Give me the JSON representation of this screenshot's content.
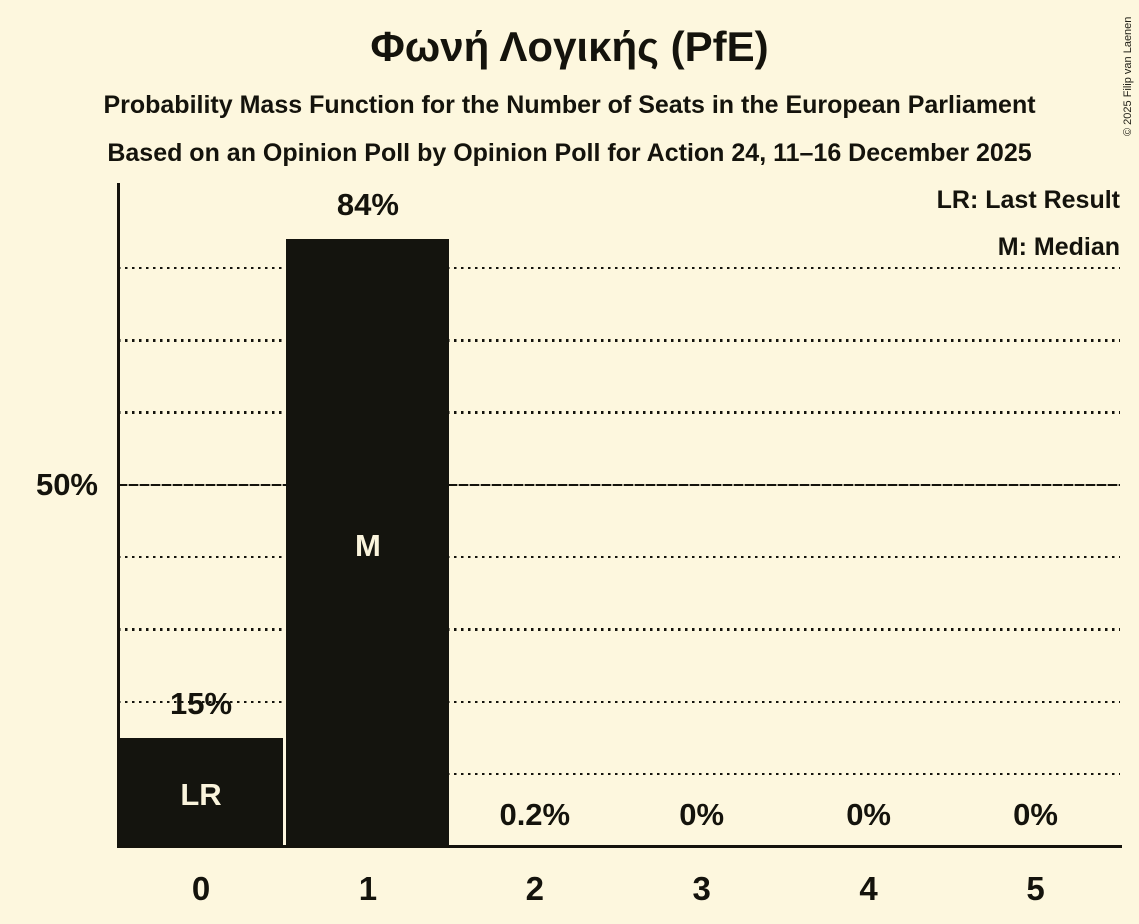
{
  "title": "Φωνή Λογικής (PfE)",
  "subtitle1": "Probability Mass Function for the Number of Seats in the European Parliament",
  "subtitle2": "Based on an Opinion Poll by Opinion Poll for Action 24, 11–16 December 2025",
  "copyright": "© 2025 Filip van Laenen",
  "legend": {
    "lr": "LR: Last Result",
    "m": "M: Median"
  },
  "colors": {
    "background": "#FDF7DE",
    "ink": "#14130C",
    "bar": "#14140E",
    "bar_label": "#FAF4DC"
  },
  "chart_data": {
    "type": "bar",
    "title": "Φωνή Λογικής (PfE)",
    "categories": [
      "0",
      "1",
      "2",
      "3",
      "4",
      "5"
    ],
    "values": [
      15,
      84,
      0.2,
      0,
      0,
      0
    ],
    "value_labels": [
      "15%",
      "84%",
      "0.2%",
      "0%",
      "0%",
      "0%"
    ],
    "bar_markers": [
      "LR",
      "M",
      "",
      "",
      "",
      ""
    ],
    "y_tick_label": "50%",
    "y_tick_value": 50,
    "ylim": [
      0,
      92
    ],
    "dotted_gridlines_pct": [
      10,
      20,
      30,
      40,
      60,
      70,
      80
    ],
    "solid_line_pct": 50,
    "grid": "dotted horizontal",
    "legend_position": "top-right",
    "legend_entries": [
      "LR: Last Result",
      "M: Median"
    ]
  }
}
